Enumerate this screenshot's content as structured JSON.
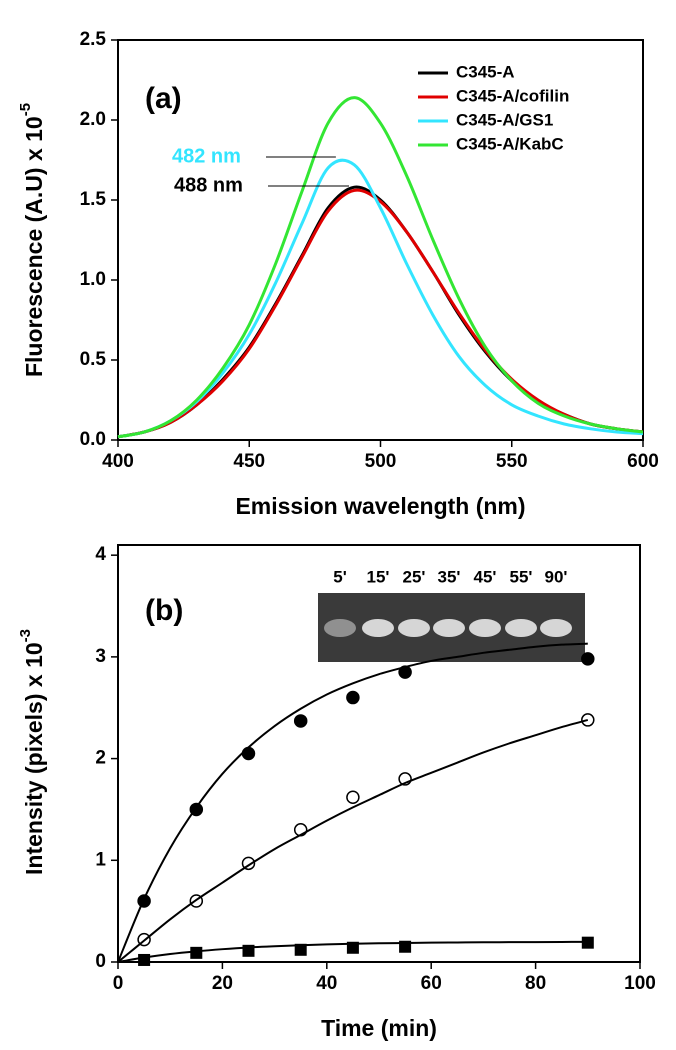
{
  "chart_data": [
    {
      "type": "line",
      "panel_label": "(a)",
      "xlabel": "Emission wavelength (nm)",
      "ylabel": "Fluorescence (A.U) x 10",
      "ylabel_exponent": "-5",
      "x": [
        400,
        410,
        420,
        430,
        440,
        450,
        460,
        470,
        480,
        490,
        500,
        510,
        520,
        530,
        540,
        550,
        560,
        570,
        580,
        590,
        600
      ],
      "xlim": [
        400,
        600
      ],
      "xticks": [
        400,
        450,
        500,
        550,
        600
      ],
      "ylim": [
        0,
        2.5
      ],
      "yticks": [
        {
          "value": 0,
          "label": "0.0"
        },
        0.5,
        {
          "value": 1,
          "label": "1.0"
        },
        1.5,
        {
          "value": 2,
          "label": "2.0"
        },
        2.5
      ],
      "legend": "top-right",
      "series": [
        {
          "name": "C345-A",
          "color": "#000000",
          "values": [
            0.02,
            0.05,
            0.11,
            0.22,
            0.38,
            0.58,
            0.85,
            1.15,
            1.45,
            1.58,
            1.5,
            1.3,
            1.05,
            0.78,
            0.55,
            0.37,
            0.24,
            0.16,
            0.1,
            0.07,
            0.05
          ]
        },
        {
          "name": "C345-A/cofilin",
          "color": "#e00000",
          "values": [
            0.02,
            0.05,
            0.11,
            0.22,
            0.37,
            0.57,
            0.84,
            1.14,
            1.43,
            1.56,
            1.49,
            1.3,
            1.05,
            0.79,
            0.56,
            0.38,
            0.25,
            0.16,
            0.1,
            0.07,
            0.05
          ]
        },
        {
          "name": "C345-A/GS1",
          "color": "#33e5ff",
          "values": [
            0.02,
            0.05,
            0.12,
            0.24,
            0.42,
            0.66,
            0.98,
            1.35,
            1.7,
            1.72,
            1.45,
            1.1,
            0.78,
            0.52,
            0.34,
            0.22,
            0.15,
            0.1,
            0.07,
            0.05,
            0.04
          ]
        },
        {
          "name": "C345-A/KabC",
          "color": "#33e633",
          "values": [
            0.02,
            0.05,
            0.12,
            0.25,
            0.45,
            0.72,
            1.1,
            1.55,
            1.98,
            2.14,
            1.98,
            1.65,
            1.25,
            0.88,
            0.58,
            0.37,
            0.23,
            0.15,
            0.1,
            0.07,
            0.05
          ]
        }
      ],
      "annotations": [
        {
          "text": "482 nm",
          "color": "#33e5ff"
        },
        {
          "text": "488 nm",
          "color": "#000000"
        }
      ]
    },
    {
      "type": "scatter",
      "panel_label": "(b)",
      "xlabel": "Time (min)",
      "ylabel": "Intensity (pixels) x 10",
      "ylabel_exponent": "-3",
      "xlim": [
        0,
        100
      ],
      "xticks": [
        0,
        20,
        40,
        60,
        80,
        100
      ],
      "ylim": [
        0,
        4.1
      ],
      "yticks": [
        0,
        1,
        2,
        3,
        4
      ],
      "inset_labels": [
        "5'",
        "15'",
        "25'",
        "35'",
        "45'",
        "55'",
        "90'"
      ],
      "series": [
        {
          "marker": "filled-circle",
          "color": "#000000",
          "x": [
            5,
            15,
            25,
            35,
            45,
            55,
            90
          ],
          "values": [
            0.6,
            1.5,
            2.05,
            2.37,
            2.6,
            2.85,
            2.98
          ]
        },
        {
          "marker": "open-circle",
          "color": "#000000",
          "x": [
            5,
            15,
            25,
            35,
            45,
            55,
            90
          ],
          "values": [
            0.22,
            0.6,
            0.97,
            1.3,
            1.62,
            1.8,
            2.38
          ]
        },
        {
          "marker": "filled-square",
          "color": "#000000",
          "x": [
            5,
            15,
            25,
            35,
            45,
            55,
            90
          ],
          "values": [
            0.02,
            0.09,
            0.11,
            0.12,
            0.14,
            0.15,
            0.19
          ]
        },
        {
          "marker": "line",
          "color": "#000000",
          "x": [
            0,
            5,
            10,
            15,
            20,
            25,
            30,
            35,
            40,
            45,
            50,
            55,
            60,
            65,
            70,
            75,
            80,
            85,
            90
          ],
          "values": [
            0,
            0.62,
            1.12,
            1.52,
            1.85,
            2.11,
            2.32,
            2.49,
            2.63,
            2.74,
            2.83,
            2.9,
            2.96,
            3.0,
            3.04,
            3.07,
            3.1,
            3.12,
            3.13
          ]
        },
        {
          "marker": "line",
          "color": "#000000",
          "x": [
            0,
            5,
            10,
            15,
            20,
            25,
            30,
            35,
            40,
            45,
            50,
            55,
            60,
            65,
            70,
            75,
            80,
            85,
            90
          ],
          "values": [
            0,
            0.21,
            0.42,
            0.61,
            0.78,
            0.95,
            1.11,
            1.25,
            1.39,
            1.52,
            1.64,
            1.76,
            1.86,
            1.96,
            2.06,
            2.15,
            2.23,
            2.31,
            2.38
          ]
        },
        {
          "marker": "line",
          "color": "#000000",
          "x": [
            0,
            5,
            10,
            15,
            20,
            25,
            30,
            35,
            40,
            45,
            50,
            55,
            60,
            65,
            70,
            75,
            80,
            85,
            90
          ],
          "values": [
            0,
            0.044,
            0.079,
            0.105,
            0.126,
            0.143,
            0.155,
            0.165,
            0.173,
            0.179,
            0.184,
            0.187,
            0.19,
            0.192,
            0.194,
            0.195,
            0.196,
            0.197,
            0.198
          ]
        }
      ]
    }
  ]
}
